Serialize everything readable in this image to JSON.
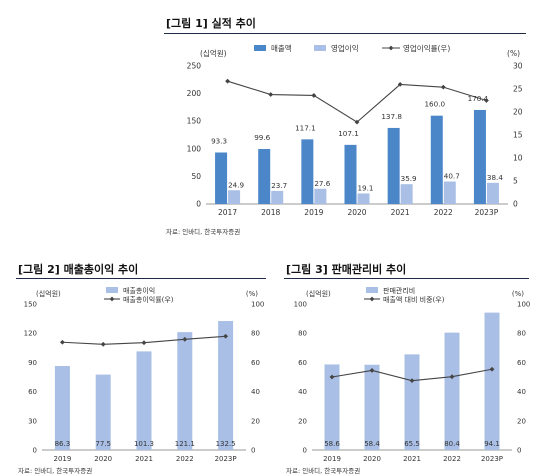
{
  "panels": [
    {
      "id": "p1",
      "title": "[그림 1] 실적 추이",
      "source": "자료: 인바디, 한국투자증권"
    },
    {
      "id": "p2",
      "title": "[그림 2] 매출총이익 추이",
      "source": "자료: 인바디, 한국투자증권"
    },
    {
      "id": "p3",
      "title": "[그림 3] 판매관리비 추이",
      "source": "자료: 인바디, 한국투자증권"
    }
  ],
  "colors": {
    "dark_bar": "#4a86c8",
    "light_bar": "#a9bfe6",
    "line": "#444444",
    "title_rule": "#1f2a44"
  },
  "chart_data": [
    {
      "type": "bar",
      "title": "",
      "categories": [
        "2017",
        "2018",
        "2019",
        "2020",
        "2021",
        "2022",
        "2023P"
      ],
      "series": [
        {
          "name": "매출액",
          "kind": "bar",
          "axis": "left",
          "color": "#4a86c8",
          "values": [
            93.3,
            99.6,
            117.1,
            107.1,
            137.8,
            160.0,
            170.4
          ]
        },
        {
          "name": "영업이익",
          "kind": "bar",
          "axis": "left",
          "color": "#a9bfe6",
          "values": [
            24.9,
            23.7,
            27.6,
            19.1,
            35.9,
            40.7,
            38.4
          ]
        },
        {
          "name": "영업이익률(우)",
          "kind": "line",
          "axis": "right",
          "color": "#444444",
          "values": [
            26.7,
            23.8,
            23.6,
            17.8,
            26.0,
            25.4,
            22.5
          ]
        }
      ],
      "left_unit": "(십억원)",
      "right_unit": "(%)",
      "ylim": [
        0,
        250
      ],
      "yticks": [
        "0",
        "50",
        "100",
        "150",
        "200",
        "250"
      ],
      "y2lim": [
        0,
        30
      ],
      "y2ticks": [
        "0",
        "5",
        "10",
        "15",
        "20",
        "25",
        "30"
      ],
      "bar_labels": [
        [
          "93.3",
          "99.6",
          "117.1",
          "107.1",
          "137.8",
          "160.0",
          "170.4"
        ],
        [
          "24.9",
          "23.7",
          "27.6",
          "19.1",
          "35.9",
          "40.7",
          "38.4"
        ]
      ],
      "legend": "top",
      "grid": false
    },
    {
      "type": "bar",
      "title": "",
      "categories": [
        "2019",
        "2020",
        "2021",
        "2022",
        "2023P"
      ],
      "series": [
        {
          "name": "매출총이익",
          "kind": "bar",
          "axis": "left",
          "color": "#a9bfe6",
          "values": [
            86.3,
            77.5,
            101.3,
            121.1,
            132.5
          ]
        },
        {
          "name": "매출총이익률(우)",
          "kind": "line",
          "axis": "right",
          "color": "#444444",
          "values": [
            73.8,
            72.4,
            73.5,
            75.8,
            77.9
          ]
        }
      ],
      "left_unit": "(십억원)",
      "right_unit": "(%)",
      "ylim": [
        0,
        150
      ],
      "yticks": [
        "0",
        "30",
        "60",
        "90",
        "120",
        "150"
      ],
      "y2lim": [
        0,
        100
      ],
      "y2ticks": [
        "0",
        "20",
        "40",
        "60",
        "80",
        "100"
      ],
      "bar_labels": [
        [
          "86.3",
          "77.5",
          "101.3",
          "121.1",
          "132.5"
        ]
      ],
      "legend": "top",
      "grid": false
    },
    {
      "type": "bar",
      "title": "",
      "categories": [
        "2019",
        "2020",
        "2021",
        "2022",
        "2023P"
      ],
      "series": [
        {
          "name": "판매관리비",
          "kind": "bar",
          "axis": "left",
          "color": "#a9bfe6",
          "values": [
            58.6,
            58.4,
            65.5,
            80.4,
            94.1
          ]
        },
        {
          "name": "매출액 대비 비중(우)",
          "kind": "line",
          "axis": "right",
          "color": "#444444",
          "values": [
            50.0,
            54.5,
            47.5,
            50.2,
            55.3
          ]
        }
      ],
      "left_unit": "(십억원)",
      "right_unit": "(%)",
      "ylim": [
        0,
        100
      ],
      "yticks": [
        "0",
        "20",
        "40",
        "60",
        "80",
        "100"
      ],
      "y2lim": [
        0,
        100
      ],
      "y2ticks": [
        "0",
        "20",
        "40",
        "60",
        "80",
        "100"
      ],
      "bar_labels": [
        [
          "58.6",
          "58.4",
          "65.5",
          "80.4",
          "94.1"
        ]
      ],
      "legend": "top",
      "grid": false
    }
  ]
}
